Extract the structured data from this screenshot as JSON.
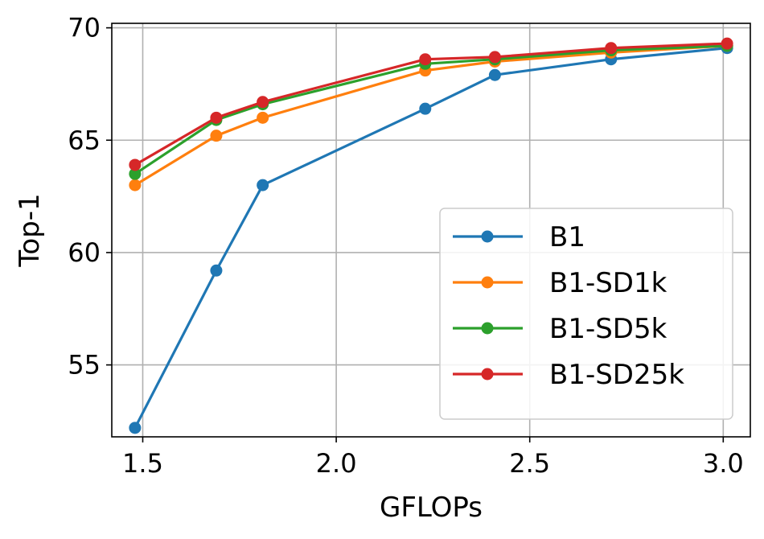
{
  "chart_data": {
    "type": "line",
    "xlabel": "GFLOPs",
    "ylabel": "Top-1",
    "xlim": [
      1.42,
      3.07
    ],
    "ylim": [
      51.8,
      70.2
    ],
    "xticks": [
      1.5,
      2.0,
      2.5,
      3.0
    ],
    "xtick_labels": [
      "1.5",
      "2.0",
      "2.5",
      "3.0"
    ],
    "yticks": [
      55,
      60,
      65,
      70
    ],
    "ytick_labels": [
      "55",
      "60",
      "65",
      "70"
    ],
    "grid": true,
    "legend_position": "lower-right",
    "series": [
      {
        "name": "B1",
        "color": "#1f77b4",
        "x": [
          1.48,
          1.69,
          1.81,
          2.23,
          2.41,
          2.71,
          3.01
        ],
        "y": [
          52.2,
          59.2,
          63.0,
          66.4,
          67.9,
          68.6,
          69.1
        ]
      },
      {
        "name": "B1-SD1k",
        "color": "#ff7f0e",
        "x": [
          1.48,
          1.69,
          1.81,
          2.23,
          2.41,
          2.71,
          3.01
        ],
        "y": [
          63.0,
          65.2,
          66.0,
          68.1,
          68.5,
          68.9,
          69.2
        ]
      },
      {
        "name": "B1-SD5k",
        "color": "#2ca02c",
        "x": [
          1.48,
          1.69,
          1.81,
          2.23,
          2.41,
          2.71,
          3.01
        ],
        "y": [
          63.5,
          65.9,
          66.6,
          68.4,
          68.6,
          69.0,
          69.2
        ]
      },
      {
        "name": "B1-SD25k",
        "color": "#d62728",
        "x": [
          1.48,
          1.69,
          1.81,
          2.23,
          2.41,
          2.71,
          3.01
        ],
        "y": [
          63.9,
          66.0,
          66.7,
          68.6,
          68.7,
          69.1,
          69.3
        ]
      }
    ]
  }
}
